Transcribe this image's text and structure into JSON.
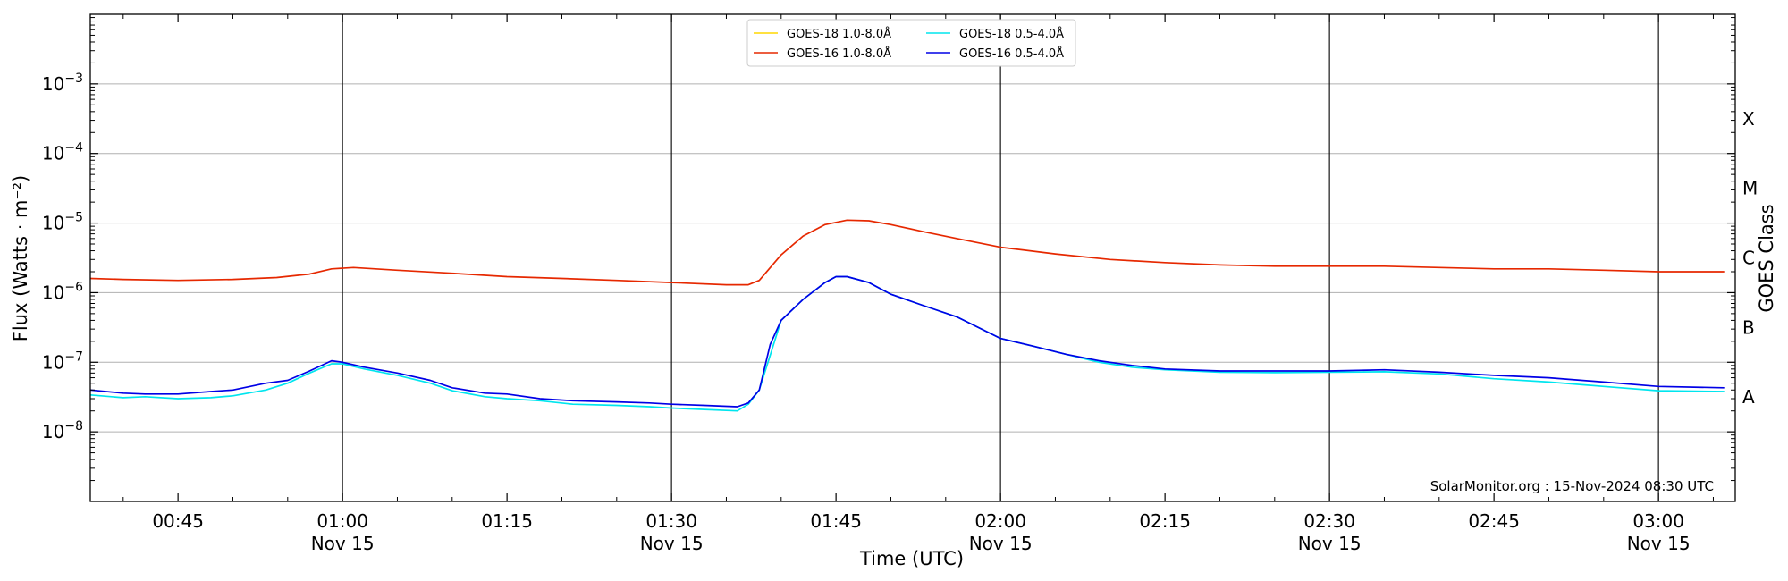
{
  "chart_data": {
    "type": "line",
    "xlabel": "Time (UTC)",
    "ylabel": "Flux (Watts · m⁻²)",
    "y2label": "GOES Class",
    "yscale": "log",
    "x_range": [
      "00:37",
      "03:07"
    ],
    "ylim": [
      1e-09,
      0.01
    ],
    "grid": "horizontal at decades",
    "legend_position": "top-center",
    "credit": "SolarMonitor.org : 15-Nov-2024 08:30 UTC",
    "x_ticks": [
      {
        "time": "00:45",
        "label": "00:45",
        "sublabel": ""
      },
      {
        "time": "01:00",
        "label": "01:00",
        "sublabel": "Nov 15",
        "vline": true
      },
      {
        "time": "01:15",
        "label": "01:15",
        "sublabel": ""
      },
      {
        "time": "01:30",
        "label": "01:30",
        "sublabel": "Nov 15",
        "vline": true
      },
      {
        "time": "01:45",
        "label": "01:45",
        "sublabel": ""
      },
      {
        "time": "02:00",
        "label": "02:00",
        "sublabel": "Nov 15",
        "vline": true
      },
      {
        "time": "02:15",
        "label": "02:15",
        "sublabel": ""
      },
      {
        "time": "02:30",
        "label": "02:30",
        "sublabel": "Nov 15",
        "vline": true
      },
      {
        "time": "02:45",
        "label": "02:45",
        "sublabel": ""
      },
      {
        "time": "03:00",
        "label": "03:00",
        "sublabel": "Nov 15",
        "vline": true
      }
    ],
    "y_ticks": [
      {
        "exp": -8,
        "base": "10",
        "sup": "−8"
      },
      {
        "exp": -7,
        "base": "10",
        "sup": "−7"
      },
      {
        "exp": -6,
        "base": "10",
        "sup": "−6"
      },
      {
        "exp": -5,
        "base": "10",
        "sup": "−5"
      },
      {
        "exp": -4,
        "base": "10",
        "sup": "−4"
      },
      {
        "exp": -3,
        "base": "10",
        "sup": "−3"
      }
    ],
    "goes_classes": [
      {
        "label": "A",
        "exp": -7.5
      },
      {
        "label": "B",
        "exp": -6.5
      },
      {
        "label": "C",
        "exp": -5.5
      },
      {
        "label": "M",
        "exp": -4.5
      },
      {
        "label": "X",
        "exp": -3.5
      }
    ],
    "series": [
      {
        "name": "GOES-18 1.0-8.0Å",
        "color": "#ffd700",
        "points": []
      },
      {
        "name": "GOES-16 1.0-8.0Å",
        "color": "#e62800",
        "points": [
          [
            "00:37",
            1.6e-06
          ],
          [
            "00:40",
            1.55e-06
          ],
          [
            "00:45",
            1.5e-06
          ],
          [
            "00:50",
            1.55e-06
          ],
          [
            "00:54",
            1.65e-06
          ],
          [
            "00:57",
            1.85e-06
          ],
          [
            "00:59",
            2.2e-06
          ],
          [
            "01:01",
            2.3e-06
          ],
          [
            "01:05",
            2.1e-06
          ],
          [
            "01:10",
            1.9e-06
          ],
          [
            "01:15",
            1.7e-06
          ],
          [
            "01:20",
            1.6e-06
          ],
          [
            "01:25",
            1.5e-06
          ],
          [
            "01:30",
            1.4e-06
          ],
          [
            "01:35",
            1.3e-06
          ],
          [
            "01:37",
            1.3e-06
          ],
          [
            "01:38",
            1.5e-06
          ],
          [
            "01:40",
            3.5e-06
          ],
          [
            "01:42",
            6.5e-06
          ],
          [
            "01:44",
            9.5e-06
          ],
          [
            "01:46",
            1.1e-05
          ],
          [
            "01:48",
            1.08e-05
          ],
          [
            "01:50",
            9.5e-06
          ],
          [
            "01:53",
            7.5e-06
          ],
          [
            "01:56",
            6e-06
          ],
          [
            "02:00",
            4.5e-06
          ],
          [
            "02:05",
            3.6e-06
          ],
          [
            "02:10",
            3e-06
          ],
          [
            "02:15",
            2.7e-06
          ],
          [
            "02:20",
            2.5e-06
          ],
          [
            "02:25",
            2.4e-06
          ],
          [
            "02:30",
            2.4e-06
          ],
          [
            "02:35",
            2.4e-06
          ],
          [
            "02:40",
            2.3e-06
          ],
          [
            "02:45",
            2.2e-06
          ],
          [
            "02:50",
            2.2e-06
          ],
          [
            "02:55",
            2.1e-06
          ],
          [
            "03:00",
            2e-06
          ],
          [
            "03:06",
            2e-06
          ]
        ]
      },
      {
        "name": "GOES-18 0.5-4.0Å",
        "color": "#00e5ee",
        "points": [
          [
            "00:37",
            3.4e-08
          ],
          [
            "00:40",
            3.1e-08
          ],
          [
            "00:42",
            3.2e-08
          ],
          [
            "00:45",
            3e-08
          ],
          [
            "00:48",
            3.1e-08
          ],
          [
            "00:50",
            3.3e-08
          ],
          [
            "00:53",
            4e-08
          ],
          [
            "00:55",
            5e-08
          ],
          [
            "00:57",
            7e-08
          ],
          [
            "00:59",
            9.5e-08
          ],
          [
            "01:00",
            9.5e-08
          ],
          [
            "01:02",
            8e-08
          ],
          [
            "01:05",
            6.5e-08
          ],
          [
            "01:08",
            5e-08
          ],
          [
            "01:10",
            3.9e-08
          ],
          [
            "01:13",
            3.2e-08
          ],
          [
            "01:15",
            3e-08
          ],
          [
            "01:18",
            2.8e-08
          ],
          [
            "01:21",
            2.5e-08
          ],
          [
            "01:25",
            2.4e-08
          ],
          [
            "01:28",
            2.3e-08
          ],
          [
            "01:30",
            2.2e-08
          ],
          [
            "01:33",
            2.1e-08
          ],
          [
            "01:36",
            2e-08
          ],
          [
            "01:37",
            2.5e-08
          ],
          [
            "01:38",
            4e-08
          ]
        ]
      },
      {
        "name": "GOES-16 0.5-4.0Å",
        "color": "#0000e6",
        "points": [
          [
            "00:37",
            4e-08
          ],
          [
            "00:40",
            3.6e-08
          ],
          [
            "00:42",
            3.5e-08
          ],
          [
            "00:45",
            3.5e-08
          ],
          [
            "00:48",
            3.8e-08
          ],
          [
            "00:50",
            4e-08
          ],
          [
            "00:53",
            5e-08
          ],
          [
            "00:55",
            5.5e-08
          ],
          [
            "00:57",
            7.5e-08
          ],
          [
            "00:59",
            1.05e-07
          ],
          [
            "01:00",
            1e-07
          ],
          [
            "01:02",
            8.5e-08
          ],
          [
            "01:05",
            7e-08
          ],
          [
            "01:08",
            5.5e-08
          ],
          [
            "01:10",
            4.3e-08
          ],
          [
            "01:13",
            3.6e-08
          ],
          [
            "01:15",
            3.5e-08
          ],
          [
            "01:18",
            3e-08
          ],
          [
            "01:21",
            2.8e-08
          ],
          [
            "01:25",
            2.7e-08
          ],
          [
            "01:28",
            2.6e-08
          ],
          [
            "01:30",
            2.5e-08
          ],
          [
            "01:33",
            2.4e-08
          ],
          [
            "01:36",
            2.3e-08
          ],
          [
            "01:37",
            2.6e-08
          ],
          [
            "01:38",
            4e-08
          ],
          [
            "01:39",
            1.8e-07
          ],
          [
            "01:40",
            4e-07
          ],
          [
            "01:42",
            8e-07
          ],
          [
            "01:44",
            1.4e-06
          ],
          [
            "01:45",
            1.7e-06
          ],
          [
            "01:46",
            1.7e-06
          ],
          [
            "01:48",
            1.4e-06
          ],
          [
            "01:50",
            9.5e-07
          ],
          [
            "01:53",
            6.5e-07
          ],
          [
            "01:56",
            4.5e-07
          ],
          [
            "02:00",
            2.2e-07
          ],
          [
            "02:03",
            1.7e-07
          ],
          [
            "02:06",
            1.3e-07
          ],
          [
            "02:09",
            1.05e-07
          ],
          [
            "02:12",
            9e-08
          ],
          [
            "02:15",
            8e-08
          ],
          [
            "02:20",
            7.5e-08
          ],
          [
            "02:25",
            7.5e-08
          ],
          [
            "02:30",
            7.5e-08
          ],
          [
            "02:35",
            7.8e-08
          ],
          [
            "02:40",
            7.2e-08
          ],
          [
            "02:45",
            6.5e-08
          ],
          [
            "02:50",
            6e-08
          ],
          [
            "02:55",
            5.2e-08
          ],
          [
            "03:00",
            4.5e-08
          ],
          [
            "03:06",
            4.3e-08
          ]
        ]
      }
    ],
    "series_extra": {
      "GOES-18 0.5-4.0Å_tail": [
        [
          "01:40",
          4e-07
        ],
        [
          "01:42",
          8e-07
        ],
        [
          "01:44",
          1.4e-06
        ],
        [
          "01:45",
          1.7e-06
        ],
        [
          "01:46",
          1.7e-06
        ],
        [
          "01:48",
          1.4e-06
        ],
        [
          "01:50",
          9.5e-07
        ],
        [
          "01:53",
          6.5e-07
        ],
        [
          "01:56",
          4.5e-07
        ],
        [
          "02:00",
          2.2e-07
        ],
        [
          "02:03",
          1.7e-07
        ],
        [
          "02:06",
          1.3e-07
        ],
        [
          "02:09",
          1e-07
        ],
        [
          "02:12",
          8.5e-08
        ],
        [
          "02:15",
          7.8e-08
        ],
        [
          "02:20",
          7.2e-08
        ],
        [
          "02:25",
          7.1e-08
        ],
        [
          "02:30",
          7.2e-08
        ],
        [
          "02:35",
          7.3e-08
        ],
        [
          "02:40",
          6.8e-08
        ],
        [
          "02:45",
          5.8e-08
        ],
        [
          "02:50",
          5.2e-08
        ],
        [
          "02:55",
          4.5e-08
        ],
        [
          "03:00",
          3.9e-08
        ],
        [
          "03:06",
          3.8e-08
        ]
      ]
    }
  }
}
